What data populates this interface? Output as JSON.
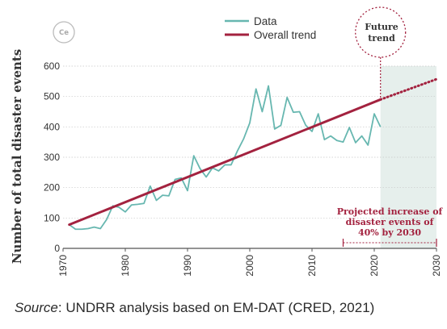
{
  "chart_data": {
    "type": "line",
    "ylabel": "Number of total disaster events",
    "xlabel": "",
    "xlim": [
      1970,
      2030
    ],
    "ylim": [
      0,
      600
    ],
    "x_ticks": [
      1970,
      1980,
      1990,
      2000,
      2010,
      2020,
      2030
    ],
    "y_ticks": [
      0,
      100,
      200,
      300,
      400,
      500,
      600
    ],
    "grid": "horizontal",
    "legend_placement": "top",
    "series": [
      {
        "name": "Data",
        "color": "#67b7b0",
        "x": [
          1971,
          1972,
          1973,
          1974,
          1975,
          1976,
          1977,
          1978,
          1979,
          1980,
          1981,
          1982,
          1983,
          1984,
          1985,
          1986,
          1987,
          1988,
          1989,
          1990,
          1991,
          1992,
          1993,
          1994,
          1995,
          1996,
          1997,
          1998,
          1999,
          2000,
          2001,
          2002,
          2003,
          2004,
          2005,
          2006,
          2007,
          2008,
          2009,
          2010,
          2011,
          2012,
          2013,
          2014,
          2015,
          2016,
          2017,
          2018,
          2019,
          2020,
          2021
        ],
        "y": [
          78,
          63,
          63,
          65,
          70,
          65,
          95,
          140,
          135,
          120,
          143,
          145,
          148,
          205,
          158,
          175,
          173,
          227,
          232,
          190,
          305,
          263,
          235,
          265,
          255,
          275,
          275,
          320,
          360,
          413,
          525,
          450,
          535,
          393,
          405,
          497,
          448,
          450,
          405,
          385,
          443,
          358,
          370,
          355,
          350,
          398,
          348,
          370,
          340,
          443,
          400
        ]
      },
      {
        "name": "Overall trend",
        "color": "#a3223f",
        "x": [
          1971,
          2021
        ],
        "y": [
          78,
          490
        ],
        "projection": {
          "x": [
            2021,
            2030
          ],
          "y": [
            490,
            557
          ],
          "style": "dotted"
        }
      }
    ],
    "shaded_region": {
      "x": [
        2021,
        2030
      ],
      "color": "#e6efec"
    },
    "annotations": {
      "future": [
        "Future",
        "trend"
      ],
      "projection": [
        "Projected increase of",
        "disaster events of",
        "40% by 2030"
      ],
      "projection_span": [
        2015,
        2030
      ]
    }
  },
  "logo": {
    "text": "Ce"
  },
  "source": {
    "label": "Source",
    "text": ": UNDRR analysis based on EM-DAT (CRED, 2021)"
  }
}
